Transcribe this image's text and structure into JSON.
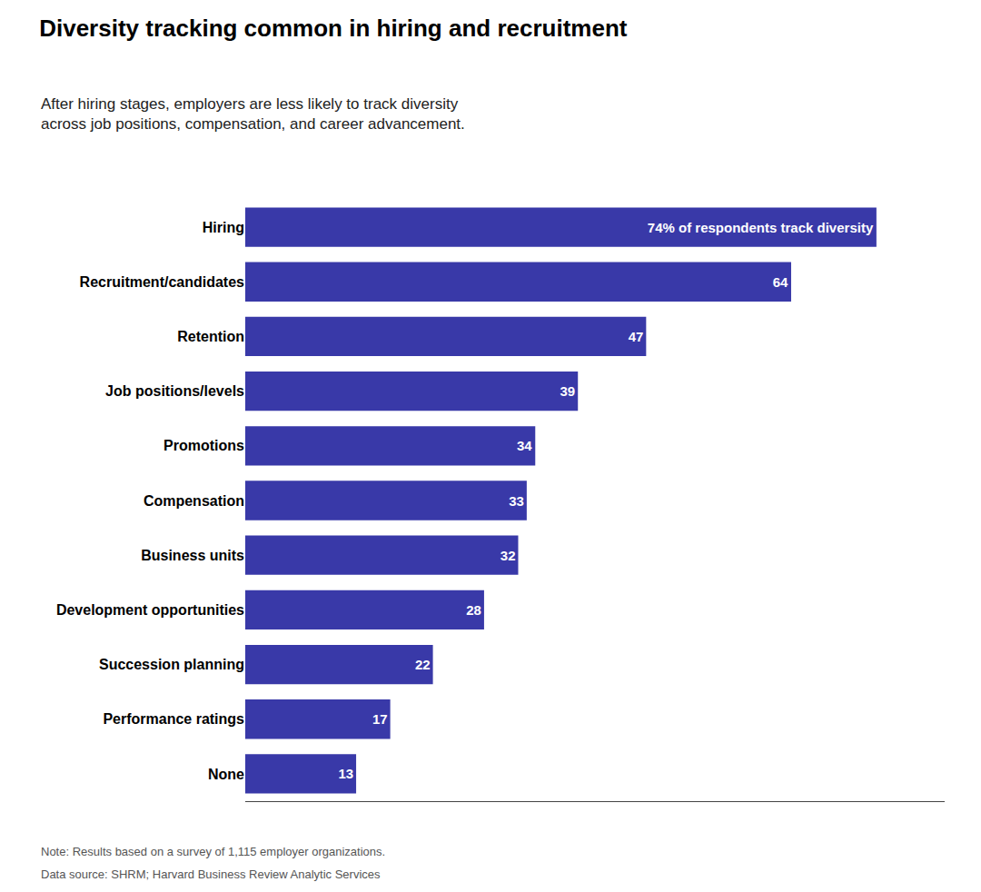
{
  "chart_data": {
    "type": "bar",
    "orientation": "horizontal",
    "title": "Diversity tracking common in hiring and recruitment",
    "subtitle": "After hiring stages, employers are less likely to track diversity\nacross job positions, compensation, and career advancement.",
    "categories": [
      "None",
      "Performance ratings",
      "Succession planning",
      "Development opportunities",
      "Business units",
      "Compensation",
      "Promotions",
      "Job positions/levels",
      "Retention",
      "Recruitment/candidates",
      "Hiring"
    ],
    "values": [
      13,
      17,
      22,
      28,
      32,
      33,
      34,
      39,
      47,
      64,
      74
    ],
    "value_labels": [
      "13",
      "17",
      "22",
      "28",
      "32",
      "33",
      "34",
      "39",
      "47",
      "64",
      "74% of respondents track diversity"
    ],
    "data_labels": true,
    "color": "#3939a8",
    "xlim": [
      0,
      82
    ],
    "tick_labels": "y",
    "grid": false,
    "annotations": [
      "Note: Results based on a survey of 1,115 employer organizations.",
      "Data source: SHRM; Harvard Business Review Analytic Services"
    ]
  }
}
